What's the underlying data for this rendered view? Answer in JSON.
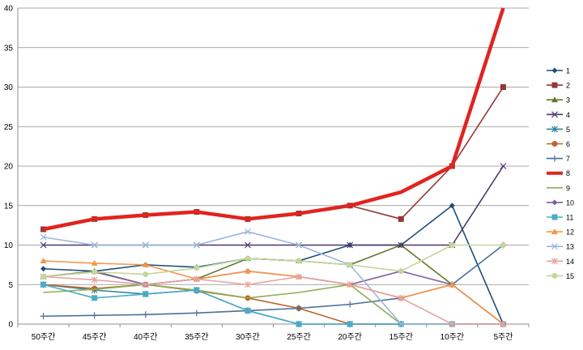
{
  "chart_data": {
    "type": "line",
    "title": "",
    "xlabel": "",
    "ylabel": "",
    "ylim": [
      0,
      40
    ],
    "yticks": [
      "0",
      "5",
      "10",
      "15",
      "20",
      "25",
      "30",
      "35",
      "40"
    ],
    "grid": true,
    "legend_position": "right",
    "categories": [
      "50주간",
      "45주간",
      "40주간",
      "35주간",
      "30주간",
      "25주간",
      "20주간",
      "15주간",
      "10주간",
      "5주간"
    ],
    "series": [
      {
        "name": "1",
        "color": "#1F4E79",
        "marker": "diamond",
        "values": [
          7,
          6.7,
          7.5,
          7.2,
          8.3,
          8,
          10,
          10,
          15,
          0
        ]
      },
      {
        "name": "2",
        "color": "#943634",
        "marker": "square",
        "values": [
          12,
          13.3,
          13.8,
          14.2,
          13.3,
          14,
          15,
          13.3,
          20,
          30
        ]
      },
      {
        "name": "3",
        "color": "#5E7A2E",
        "marker": "triangle",
        "values": [
          6,
          6.7,
          5,
          5.7,
          8.3,
          8,
          7.5,
          10,
          5,
          0
        ]
      },
      {
        "name": "4",
        "color": "#4A3770",
        "marker": "x",
        "values": [
          10,
          10,
          10,
          10,
          10,
          10,
          10,
          10,
          10,
          20
        ]
      },
      {
        "name": "5",
        "color": "#31859C",
        "marker": "asterisk",
        "values": [
          5,
          4.3,
          3.8,
          4.3,
          1.7,
          0,
          0,
          0,
          0,
          0
        ]
      },
      {
        "name": "6",
        "color": "#C0632A",
        "marker": "circle",
        "values": [
          5,
          4.5,
          5,
          4.2,
          3.3,
          2,
          0,
          0,
          0,
          0
        ]
      },
      {
        "name": "7",
        "color": "#4C6F9A",
        "marker": "plus",
        "values": [
          1,
          1.1,
          1.2,
          1.4,
          1.7,
          2,
          2.5,
          3.3,
          5,
          10
        ]
      },
      {
        "name": "8",
        "color": "#E0241F",
        "marker": "none",
        "thick": true,
        "values": [
          12,
          13.3,
          13.8,
          14.2,
          13.3,
          14,
          15,
          16.7,
          20,
          40
        ]
      },
      {
        "name": "9",
        "color": "#8CAF52",
        "marker": "none",
        "values": [
          4,
          4.4,
          5,
          4.3,
          3.3,
          4,
          5,
          0,
          0,
          0
        ]
      },
      {
        "name": "10",
        "color": "#7E5FA0",
        "marker": "diamond",
        "values": [
          6,
          6.6,
          5,
          5.7,
          6.7,
          6,
          5,
          6.7,
          5,
          0
        ]
      },
      {
        "name": "11",
        "color": "#4BACC6",
        "marker": "square",
        "values": [
          5,
          3.3,
          3.8,
          4.3,
          1.7,
          0,
          0,
          0,
          0,
          0
        ]
      },
      {
        "name": "12",
        "color": "#F79646",
        "marker": "triangle",
        "values": [
          8,
          7.7,
          7.5,
          5.7,
          6.7,
          6,
          5,
          3.3,
          5,
          0
        ]
      },
      {
        "name": "13",
        "color": "#9BB7D9",
        "marker": "x",
        "values": [
          11,
          10,
          10,
          10,
          11.7,
          10,
          7.5,
          0,
          0,
          0
        ]
      },
      {
        "name": "14",
        "color": "#E6A2A0",
        "marker": "asterisk",
        "values": [
          6,
          5.6,
          5,
          5.7,
          5,
          6,
          5,
          3.3,
          0,
          0
        ]
      },
      {
        "name": "15",
        "color": "#C3D69B",
        "marker": "circle",
        "values": [
          6,
          6.6,
          6.3,
          7.1,
          8.3,
          8,
          7.5,
          6.7,
          10,
          10
        ]
      }
    ]
  }
}
